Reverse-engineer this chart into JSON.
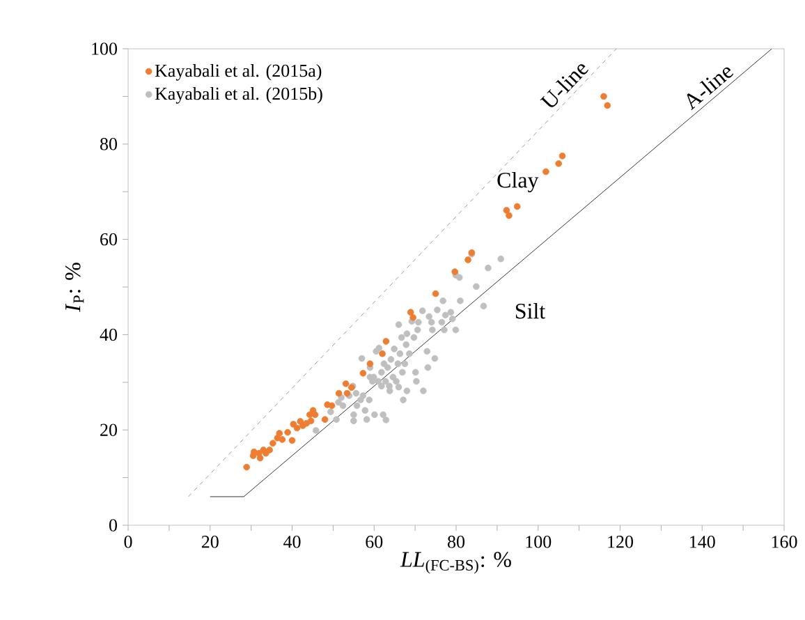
{
  "chart_data": {
    "type": "scatter",
    "xlabel": "*LL*$_{(FC-BS)}$: %",
    "ylabel": "*I*$_{P}$: %",
    "xlim": [
      0,
      160
    ],
    "ylim": [
      0,
      100
    ],
    "xticks": [
      0,
      {
        "value": 10,
        "label": null
      },
      20,
      {
        "value": 30,
        "label": null
      },
      40,
      {
        "value": 50,
        "label": null
      },
      60,
      {
        "value": 70,
        "label": null
      },
      80,
      {
        "value": 90,
        "label": null
      },
      100,
      {
        "value": 110,
        "label": null
      },
      120,
      {
        "value": 130,
        "label": null
      },
      140,
      {
        "value": 150,
        "label": null
      },
      160
    ],
    "yticks": [
      0,
      {
        "value": 10,
        "label": null
      },
      20,
      {
        "value": 30,
        "label": null
      },
      40,
      {
        "value": 50,
        "label": null
      },
      60,
      {
        "value": 70,
        "label": null
      },
      80,
      {
        "value": 90,
        "label": null
      },
      100
    ],
    "grid": false,
    "legend": "top left",
    "annotations": [
      "Clay",
      "Silt"
    ],
    "series": [
      {
        "name": "Kayabali et al. (2015a)",
        "color": "#ed7d31",
        "marker": "circle",
        "x": [
          28.9,
          30.5,
          30.7,
          31.9,
          32.2,
          33.0,
          33.6,
          34.5,
          35.3,
          36.4,
          36.9,
          37.6,
          38.9,
          40.0,
          40.3,
          41.2,
          42.0,
          42.6,
          43.5,
          44.3,
          44.6,
          45.1,
          45.6,
          48.0,
          48.6,
          49.7,
          51.4,
          53.1,
          53.4,
          54.5,
          57.3,
          59.0,
          62.0,
          62.9,
          68.9,
          69.5,
          75.0,
          79.7,
          82.9,
          83.8,
          92.3,
          92.9,
          94.9,
          101.9,
          105.0,
          105.9,
          116.0,
          116.9
        ],
        "values": [
          12.2,
          14.6,
          15.4,
          15.1,
          14.1,
          15.8,
          15.1,
          15.8,
          17.2,
          18.3,
          19.3,
          18.0,
          19.5,
          17.8,
          21.2,
          20.4,
          21.8,
          20.9,
          21.4,
          23.2,
          21.9,
          24.1,
          23.2,
          22.2,
          25.3,
          25.1,
          27.7,
          29.7,
          27.7,
          28.9,
          31.9,
          33.9,
          36.0,
          38.6,
          44.7,
          43.6,
          48.6,
          53.2,
          55.7,
          57.2,
          66.1,
          65.0,
          66.9,
          74.2,
          75.9,
          77.5,
          90.0,
          88.1
        ]
      },
      {
        "name": "Kayabali et al. (2015b)",
        "color": "#bfbfbf",
        "marker": "circle",
        "x": [
          45.8,
          49.4,
          50.8,
          51.3,
          52.0,
          52.4,
          53.9,
          54.8,
          55.0,
          55.0,
          55.8,
          56.7,
          57.3,
          57.8,
          58.2,
          58.8,
          57.0,
          59.0,
          59.6,
          59.9,
          60.1,
          60.5,
          61.0,
          61.2,
          61.8,
          62.2,
          62.4,
          62.8,
          62.9,
          63.3,
          63.7,
          63.8,
          64.1,
          64.6,
          64.9,
          65.4,
          65.8,
          66.0,
          66.3,
          66.7,
          66.9,
          67.1,
          67.5,
          67.8,
          68.0,
          66.0,
          68.0,
          68.6,
          69.2,
          69.7,
          70.1,
          70.3,
          70.6,
          70.8,
          71.8,
          72.0,
          72.9,
          73.1,
          73.4,
          74.0,
          74.2,
          74.8,
          75.4,
          76.8,
          77.1,
          77.4,
          78.7,
          79.1,
          79.9,
          79.9,
          80.8,
          81.0,
          83.8,
          84.9,
          86.7,
          87.8,
          90.9,
          76.5,
          59.0,
          61.8,
          55.6
        ],
        "values": [
          19.9,
          23.8,
          22.2,
          25.8,
          26.8,
          25.1,
          27.2,
          29.2,
          23.2,
          21.9,
          25.1,
          26.3,
          27.2,
          24.1,
          22.2,
          26.3,
          35.0,
          33.1,
          30.2,
          31.1,
          23.2,
          36.5,
          30.2,
          37.2,
          32.1,
          23.2,
          33.9,
          30.2,
          22.1,
          33.1,
          29.2,
          28.2,
          34.8,
          31.1,
          37.0,
          30.2,
          33.9,
          29.0,
          36.0,
          39.4,
          32.1,
          26.3,
          33.9,
          37.9,
          28.2,
          42.1,
          40.2,
          36.0,
          42.8,
          39.4,
          32.1,
          30.2,
          41.0,
          42.6,
          45.0,
          28.2,
          36.5,
          33.1,
          43.8,
          42.6,
          41.0,
          35.0,
          45.2,
          47.1,
          41.0,
          44.1,
          44.7,
          43.3,
          41.0,
          52.5,
          52.0,
          47.1,
          56.9,
          50.1,
          46.0,
          54.0,
          55.9,
          42.6,
          31.1,
          29.2,
          27.7
        ]
      },
      {
        "name": "U-line",
        "type": "line",
        "color": "#808080",
        "line_style": "dashed",
        "marker": "none",
        "x": [
          14.7,
          119.1
        ],
        "values": [
          6,
          100
        ]
      },
      {
        "name": "A-line",
        "type": "line",
        "color": "#000000",
        "line_style": "solid",
        "marker": "none",
        "x": [
          20,
          28.2,
          157
        ],
        "values": [
          6,
          6,
          100
        ]
      }
    ]
  }
}
